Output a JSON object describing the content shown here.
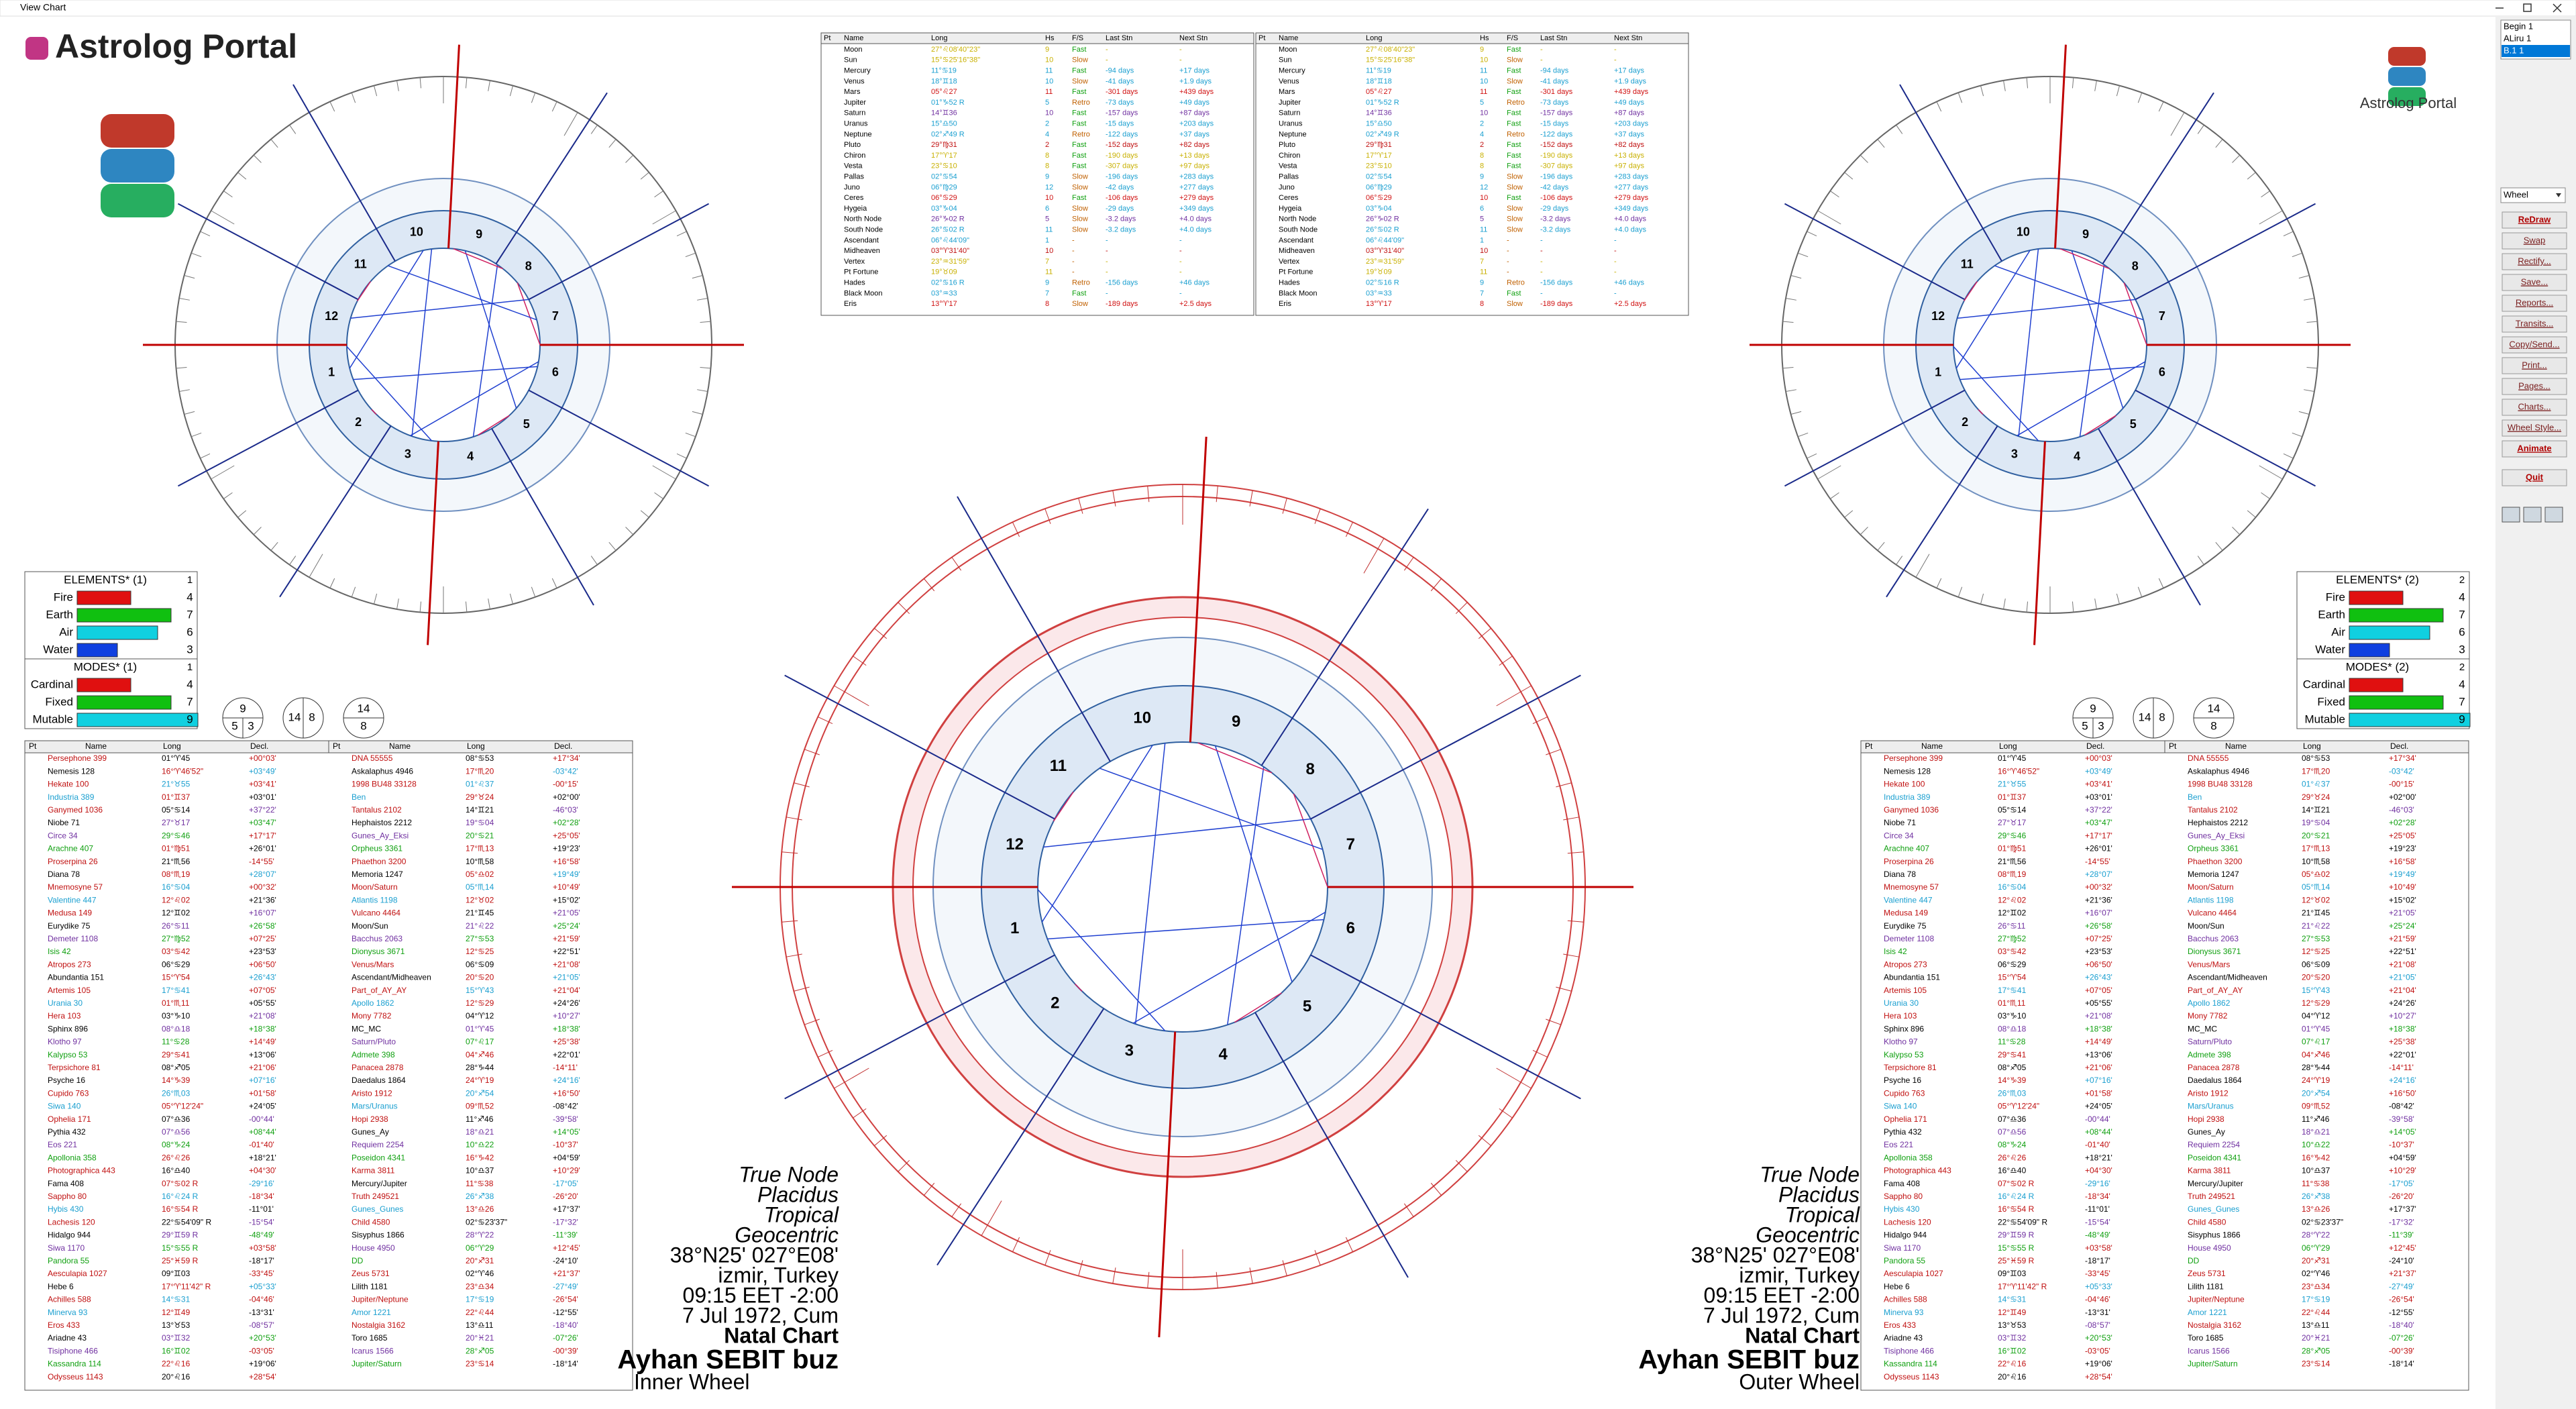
{
  "window": {
    "title": "View Chart"
  },
  "logo": {
    "text": "Astrolog Portal"
  },
  "side_panel": {
    "list": [
      "Begin 1",
      "ALiru 1",
      "B.1 1"
    ],
    "dropdown": "Wheel",
    "buttons": [
      "ReDraw",
      "Swap",
      "Rectify...",
      "Save...",
      "Reports...",
      "Transits...",
      "Copy/Send...",
      "Print...",
      "Pages...",
      "Charts...",
      "Wheel Style...",
      "Animate",
      "Quit"
    ]
  },
  "positions": {
    "headers": [
      "Pt",
      "Name",
      "Long",
      "Hs",
      "F/S",
      "Last Stn",
      "Next Stn"
    ],
    "rows": [
      [
        "Moon",
        "27°♌08'40\"23\"",
        "9",
        "Fast",
        "-",
        "-"
      ],
      [
        "Sun",
        "15°♋25'16\"38\"",
        "10",
        "Slow",
        "-",
        "-"
      ],
      [
        "Mercury",
        "11°♋19",
        "11",
        "Fast",
        "-94 days",
        "+17 days"
      ],
      [
        "Venus",
        "18°♊18",
        "10",
        "Slow",
        "-41 days",
        "+1.9 days"
      ],
      [
        "Mars",
        "05°♌27",
        "11",
        "Fast",
        "-301 days",
        "+439 days"
      ],
      [
        "Jupiter",
        "01°♑52 R",
        "5",
        "Retro",
        "-73 days",
        "+49 days"
      ],
      [
        "Saturn",
        "14°♊36",
        "10",
        "Fast",
        "-157 days",
        "+87 days"
      ],
      [
        "Uranus",
        "15°♎50",
        "2",
        "Fast",
        "-15 days",
        "+203 days"
      ],
      [
        "Neptune",
        "02°♐49 R",
        "4",
        "Retro",
        "-122 days",
        "+37 days"
      ],
      [
        "Pluto",
        "29°♍31",
        "2",
        "Fast",
        "-152 days",
        "+82 days"
      ],
      [
        "Chiron",
        "17°♈17",
        "8",
        "Fast",
        "-190 days",
        "+13 days"
      ],
      [
        "Vesta",
        "23°♋10",
        "8",
        "Fast",
        "-307 days",
        "+97 days"
      ],
      [
        "Pallas",
        "02°♋54",
        "9",
        "Slow",
        "-196 days",
        "+283 days"
      ],
      [
        "Juno",
        "06°♍29",
        "12",
        "Slow",
        "-42 days",
        "+277 days"
      ],
      [
        "Ceres",
        "06°♋29",
        "10",
        "Fast",
        "-106 days",
        "+279 days"
      ],
      [
        "Hygeia",
        "03°♑04",
        "6",
        "Slow",
        "-29 days",
        "+349 days"
      ],
      [
        "North Node",
        "26°♑02 R",
        "5",
        "Slow",
        "-3.2 days",
        "+4.0 days"
      ],
      [
        "South Node",
        "26°♋02 R",
        "11",
        "Slow",
        "-3.2 days",
        "+4.0 days"
      ],
      [
        "Ascendant",
        "06°♌44'09\"",
        "1",
        "-",
        "-",
        "-"
      ],
      [
        "Midheaven",
        "03°♈31'40\"",
        "10",
        "-",
        "-",
        "-"
      ],
      [
        "Vertex",
        "23°♒31'59\"",
        "7",
        "-",
        "-",
        "-"
      ],
      [
        "Pt Fortune",
        "19°♉09",
        "11",
        "-",
        "-",
        "-"
      ],
      [
        "Hades",
        "02°♋16 R",
        "9",
        "Retro",
        "-156 days",
        "+46 days"
      ],
      [
        "Black Moon",
        "03°♒33",
        "7",
        "Fast",
        "-",
        "-"
      ],
      [
        "Eris",
        "13°♈17",
        "8",
        "Slow",
        "-189 days",
        "+2.5 days"
      ]
    ]
  },
  "elements": [
    {
      "title": "ELEMENTS* (1)",
      "tag": "1",
      "rows": [
        {
          "label": "Fire",
          "value": 4,
          "color": "#e01010"
        },
        {
          "label": "Earth",
          "value": 7,
          "color": "#10c010"
        },
        {
          "label": "Air",
          "value": 6,
          "color": "#10d0e0"
        },
        {
          "label": "Water",
          "value": 3,
          "color": "#1040e0"
        }
      ]
    },
    {
      "title": "ELEMENTS* (2)",
      "tag": "2",
      "rows": [
        {
          "label": "Fire",
          "value": 4,
          "color": "#e01010"
        },
        {
          "label": "Earth",
          "value": 7,
          "color": "#10c010"
        },
        {
          "label": "Air",
          "value": 6,
          "color": "#10d0e0"
        },
        {
          "label": "Water",
          "value": 3,
          "color": "#1040e0"
        }
      ]
    }
  ],
  "modes": [
    {
      "title": "MODES* (1)",
      "tag": "1",
      "rows": [
        {
          "label": "Cardinal",
          "value": 4,
          "color": "#e01010"
        },
        {
          "label": "Fixed",
          "value": 7,
          "color": "#10c010"
        },
        {
          "label": "Mutable",
          "value": 9,
          "color": "#10d0e0"
        }
      ]
    },
    {
      "title": "MODES* (2)",
      "tag": "2",
      "rows": [
        {
          "label": "Cardinal",
          "value": 4,
          "color": "#e01010"
        },
        {
          "label": "Fixed",
          "value": 7,
          "color": "#10c010"
        },
        {
          "label": "Mutable",
          "value": 9,
          "color": "#10d0e0"
        }
      ]
    }
  ],
  "circles": [
    [
      9,
      5,
      3
    ],
    [
      14,
      8
    ],
    [
      14,
      8
    ]
  ],
  "houses": [
    1,
    2,
    3,
    4,
    5,
    6,
    7,
    8,
    9,
    10,
    11,
    12
  ],
  "asteroids": {
    "headers": [
      "Pt",
      "Name",
      "Long",
      "Decl."
    ],
    "left": [
      [
        "Persephone 399",
        "01°♈45",
        "+00°03'"
      ],
      [
        "Nemesis 128",
        "16°♈46'52\"",
        "+03°49'"
      ],
      [
        "Hekate 100",
        "21°♉55",
        "+03°41'"
      ],
      [
        "Industria 389",
        "01°♊37",
        "+03°01'"
      ],
      [
        "Ganymed 1036",
        "05°♋14",
        "+37°22'"
      ],
      [
        "Niobe 71",
        "27°♉17",
        "+03°47'"
      ],
      [
        "Circe 34",
        "29°♋46",
        "+17°17'"
      ],
      [
        "Arachne 407",
        "01°♍51",
        "+26°01'"
      ],
      [
        "Proserpina 26",
        "21°♏56",
        "-14°55'"
      ],
      [
        "Diana 78",
        "08°♏19",
        "+28°07'"
      ],
      [
        "Mnemosyne 57",
        "16°♋04",
        "+00°32'"
      ],
      [
        "Valentine 447",
        "12°♌02",
        "+21°36'"
      ],
      [
        "Medusa 149",
        "12°♊02",
        "+16°07'"
      ],
      [
        "Eurydike 75",
        "26°♋11",
        "+26°58'"
      ],
      [
        "Demeter 1108",
        "27°♍52",
        "+07°25'"
      ],
      [
        "Isis 42",
        "03°♋42",
        "+23°53'"
      ],
      [
        "Atropos 273",
        "06°♋29",
        "+06°50'"
      ],
      [
        "Abundantia 151",
        "15°♈54",
        "+26°43'"
      ],
      [
        "Artemis 105",
        "17°♋41",
        "+07°05'"
      ],
      [
        "Urania 30",
        "01°♏11",
        "+05°55'"
      ],
      [
        "Hera 103",
        "03°♑10",
        "+21°08'"
      ],
      [
        "Sphinx 896",
        "08°♎18",
        "+18°38'"
      ],
      [
        "Klotho 97",
        "11°♋28",
        "+14°49'"
      ],
      [
        "Kalypso 53",
        "29°♋41",
        "+13°06'"
      ],
      [
        "Terpsichore 81",
        "08°♐05",
        "+21°06'"
      ],
      [
        "Psyche 16",
        "14°♑39",
        "+07°16'"
      ],
      [
        "Cupido 763",
        "26°♏03",
        "+01°58'"
      ],
      [
        "Siwa 140",
        "05°♈12'24\"",
        "+24°05'"
      ],
      [
        "Ophelia 171",
        "07°♎36",
        "-00°44'"
      ],
      [
        "Pythia 432",
        "07°♎56",
        "+08°44'"
      ],
      [
        "Eos 221",
        "08°♑24",
        "-01°40'"
      ],
      [
        "Apollonia 358",
        "26°♌26",
        "+18°21'"
      ],
      [
        "Photographica 443",
        "16°♎40",
        "+04°30'"
      ],
      [
        "Fama 408",
        "07°♋02 R",
        "-29°16'"
      ],
      [
        "Sappho 80",
        "16°♌24 R",
        "-18°34'"
      ],
      [
        "Hybis 430",
        "16°♋54 R",
        "-11°01'"
      ],
      [
        "Lachesis 120",
        "22°♋54'09\" R",
        "-15°54'"
      ],
      [
        "Hidalgo 944",
        "29°♊59 R",
        "-48°49'"
      ],
      [
        "Siwa 1170",
        "15°♋55 R",
        "+03°58'"
      ],
      [
        "Pandora 55",
        "25°♓59 R",
        "-18°17'"
      ],
      [
        "Aesculapia 1027",
        "09°♊03",
        "-33°45'"
      ],
      [
        "Hebe 6",
        "17°♈11'42\" R",
        "+05°33'"
      ],
      [
        "Achilles 588",
        "14°♋31",
        "-04°46'"
      ],
      [
        "Minerva 93",
        "12°♊49",
        "-13°31'"
      ],
      [
        "Eros 433",
        "13°♉53",
        "-08°57'"
      ],
      [
        "Ariadne 43",
        "03°♊32",
        "+20°53'"
      ],
      [
        "Tisiphone 466",
        "16°♊02",
        "-03°05'"
      ],
      [
        "Kassandra 114",
        "22°♌16",
        "+19°06'"
      ],
      [
        "Odysseus 1143",
        "20°♌16",
        "+28°54'"
      ]
    ],
    "right": [
      [
        "DNA 55555",
        "08°♋53",
        "+17°34'"
      ],
      [
        "Askalaphus 4946",
        "17°♏20",
        "-03°42'"
      ],
      [
        "1998 BU48 33128",
        "01°♌37",
        "-00°15'"
      ],
      [
        "Ben",
        "29°♉24",
        "+02°00'"
      ],
      [
        "Tantalus 2102",
        "14°♊21",
        "-46°03'"
      ],
      [
        "Hephaistos 2212",
        "19°♋04",
        "+02°28'"
      ],
      [
        "Gunes_Ay_Eksi",
        "20°♋21",
        "+25°05'"
      ],
      [
        "Orpheus 3361",
        "17°♏13",
        "+19°23'"
      ],
      [
        "Phaethon 3200",
        "10°♏58",
        "+16°58'"
      ],
      [
        "Memoria 1247",
        "05°♎02",
        "+19°49'"
      ],
      [
        "Moon/Saturn",
        "05°♏14",
        "+10°49'"
      ],
      [
        "Atlantis 1198",
        "12°♉02",
        "+15°02'"
      ],
      [
        "Vulcano 4464",
        "21°♊45",
        "+21°05'"
      ],
      [
        "Moon/Sun",
        "21°♌22",
        "+25°24'"
      ],
      [
        "Bacchus 2063",
        "27°♋53",
        "+21°59'"
      ],
      [
        "Dionysus 3671",
        "12°♋25",
        "+22°51'"
      ],
      [
        "Venus/Mars",
        "06°♋09",
        "+21°08'"
      ],
      [
        "Ascendant/Midheaven",
        "20°♋20",
        "+21°05'"
      ],
      [
        "Part_of_AY_AY",
        "15°♈43",
        "+21°04'"
      ],
      [
        "Apollo 1862",
        "12°♋29",
        "+24°26'"
      ],
      [
        "Mony 7782",
        "04°♈12",
        "+10°27'"
      ],
      [
        "MC_MC",
        "01°♈45",
        "+18°38'"
      ],
      [
        "Saturn/Pluto",
        "07°♌17",
        "+25°38'"
      ],
      [
        "Admete 398",
        "04°♐46",
        "+22°01'"
      ],
      [
        "Panacea 2878",
        "28°♑44",
        "-14°11'"
      ],
      [
        "Daedalus 1864",
        "24°♈19",
        "+24°16'"
      ],
      [
        "Aristo 1912",
        "20°♐54",
        "+16°50'"
      ],
      [
        "Mars/Uranus",
        "09°♏52",
        "-08°42'"
      ],
      [
        "Hopi 2938",
        "11°♐46",
        "-39°58'"
      ],
      [
        "Gunes_Ay",
        "18°♎21",
        "+14°05'"
      ],
      [
        "Requiem 2254",
        "10°♎22",
        "-10°37'"
      ],
      [
        "Poseidon 4341",
        "16°♑42",
        "+04°59'"
      ],
      [
        "Karma 3811",
        "10°♎37",
        "+10°29'"
      ],
      [
        "Mercury/Jupiter",
        "11°♋38",
        "-17°05'"
      ],
      [
        "Truth 249521",
        "26°♐38",
        "-26°20'"
      ],
      [
        "Gunes_Gunes",
        "13°♎26",
        "+17°37'"
      ],
      [
        "Child 4580",
        "02°♋23'37\"",
        "-17°32'"
      ],
      [
        "Sisyphus 1866",
        "28°♈22",
        "-11°39'"
      ],
      [
        "House 4950",
        "06°♈29",
        "+12°45'"
      ],
      [
        "DD",
        "20°♐31",
        "-24°10'"
      ],
      [
        "Zeus 5731",
        "02°♈46",
        "+21°37'"
      ],
      [
        "Lilith 1181",
        "23°♎34",
        "-27°49'"
      ],
      [
        "Jupiter/Neptune",
        "17°♋19",
        "-26°54'"
      ],
      [
        "Amor 1221",
        "22°♌44",
        "-12°55'"
      ],
      [
        "Nostalgia 3162",
        "13°♎11",
        "-18°40'"
      ],
      [
        "Toro 1685",
        "20°♓21",
        "-07°26'"
      ],
      [
        "Icarus 1566",
        "28°♐05",
        "-00°39'"
      ],
      [
        "Jupiter/Saturn",
        "23°♋14",
        "-18°14'"
      ]
    ]
  },
  "chart_info": {
    "lines": [
      "True Node",
      "Placidus",
      "Tropical",
      "Geocentric",
      "38°N25' 027°E08'",
      "izmir, Turkey",
      "09:15  EET -2:00",
      "7 Jul 1972, Cum",
      "Natal Chart",
      "Ayhan SEBIT buz"
    ],
    "wheel_labels": [
      "Inner Wheel",
      "Outer Wheel"
    ]
  }
}
